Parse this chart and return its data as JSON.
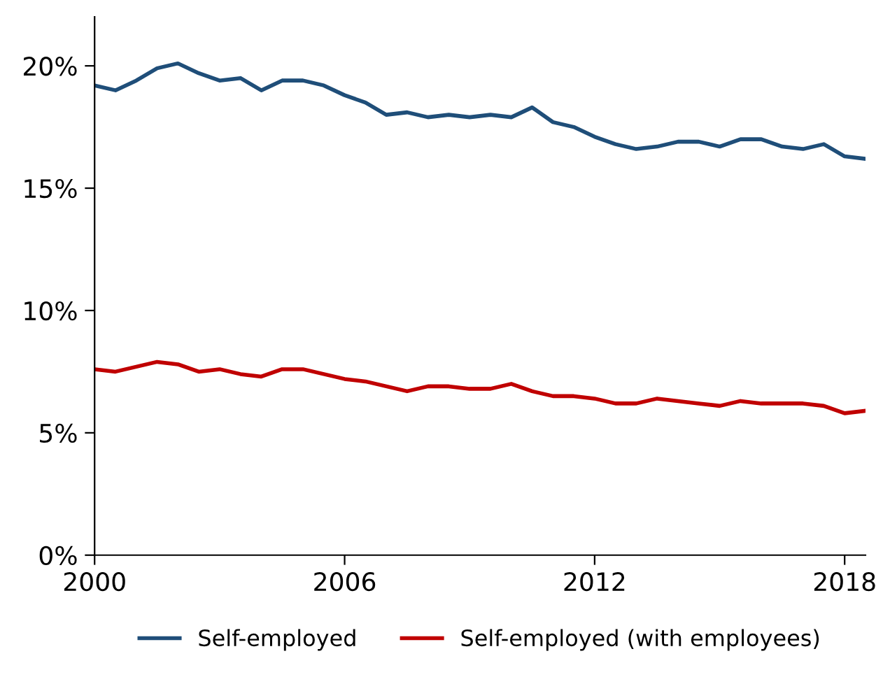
{
  "chart_data": {
    "type": "line",
    "x": [
      2000,
      2000.5,
      2001,
      2001.5,
      2002,
      2002.5,
      2003,
      2003.5,
      2004,
      2004.5,
      2005,
      2005.5,
      2006,
      2006.5,
      2007,
      2007.5,
      2008,
      2008.5,
      2009,
      2009.5,
      2010,
      2010.5,
      2011,
      2011.5,
      2012,
      2012.5,
      2013,
      2013.5,
      2014,
      2014.5,
      2015,
      2015.5,
      2016,
      2016.5,
      2017,
      2017.5,
      2018,
      2018.5
    ],
    "series": [
      {
        "name": "Self-employed",
        "color": "#1f4e79",
        "values": [
          19.2,
          19.0,
          19.4,
          19.9,
          20.1,
          19.7,
          19.4,
          19.5,
          19.0,
          19.4,
          19.4,
          19.2,
          18.8,
          18.5,
          18.0,
          18.1,
          17.9,
          18.0,
          17.9,
          18.0,
          17.9,
          18.3,
          17.7,
          17.5,
          17.1,
          16.8,
          16.6,
          16.7,
          16.9,
          16.9,
          16.7,
          17.0,
          17.0,
          16.7,
          16.6,
          16.8,
          16.3,
          16.2
        ]
      },
      {
        "name": "Self-employed (with employees)",
        "color": "#c00000",
        "values": [
          7.6,
          7.5,
          7.7,
          7.9,
          7.8,
          7.5,
          7.6,
          7.4,
          7.3,
          7.6,
          7.6,
          7.4,
          7.2,
          7.1,
          6.9,
          6.7,
          6.9,
          6.9,
          6.8,
          6.8,
          7.0,
          6.7,
          6.5,
          6.5,
          6.4,
          6.2,
          6.2,
          6.4,
          6.3,
          6.2,
          6.1,
          6.3,
          6.2,
          6.2,
          6.2,
          6.1,
          5.8,
          5.9
        ]
      }
    ],
    "xlim": [
      2000,
      2018.5
    ],
    "xticks": [
      2000,
      2006,
      2012,
      2018
    ],
    "ylim": [
      0,
      22
    ],
    "yticks": [
      {
        "value": 0,
        "label": "0%"
      },
      {
        "value": 5,
        "label": "5%"
      },
      {
        "value": 10,
        "label": "10%"
      },
      {
        "value": 15,
        "label": "15%"
      },
      {
        "value": 20,
        "label": "20%"
      }
    ],
    "legend": "bottom",
    "grid": false
  }
}
